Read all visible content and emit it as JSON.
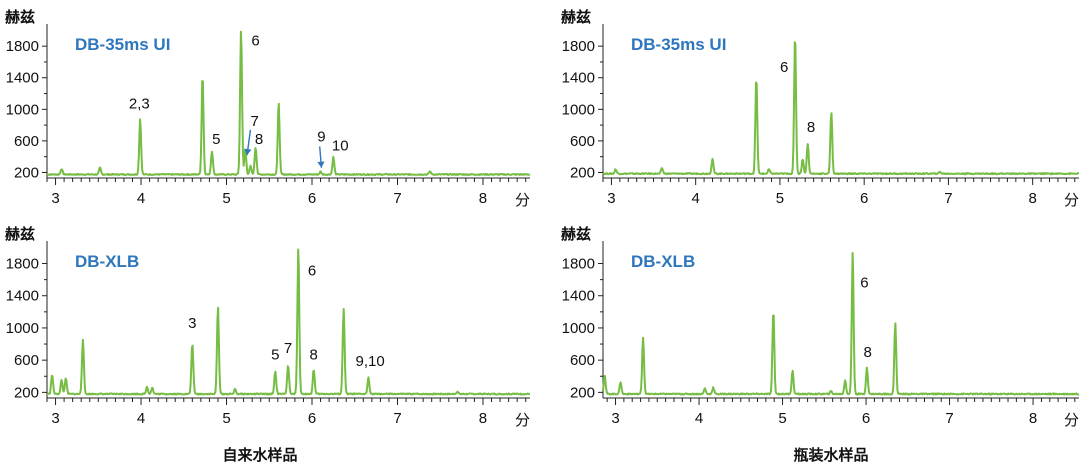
{
  "captions": {
    "left": "自来水样品",
    "right": "瓶装水样品"
  },
  "colors": {
    "trace": "#76bd43",
    "column_label": "#2e77bd",
    "axis": "#222222",
    "arrow": "#2e77bd"
  },
  "chart_data": [
    {
      "type": "line",
      "column": "DB-35ms UI",
      "ylabel": "赫兹",
      "xunit": "分",
      "xlim": [
        2.9,
        8.55
      ],
      "ylim": [
        130,
        2030
      ],
      "yticks": [
        "200",
        "600",
        "1000",
        "1400",
        "1800"
      ],
      "xticks": [
        "3",
        "4",
        "5",
        "6",
        "7",
        "8"
      ],
      "baseline": 175,
      "peaks": [
        {
          "x": 3.07,
          "h": 245
        },
        {
          "x": 3.52,
          "h": 260
        },
        {
          "x": 3.99,
          "h": 880
        },
        {
          "x": 4.72,
          "h": 1440
        },
        {
          "x": 4.83,
          "h": 470
        },
        {
          "x": 5.17,
          "h": 2010
        },
        {
          "x": 5.22,
          "h": 500
        },
        {
          "x": 5.28,
          "h": 280
        },
        {
          "x": 5.34,
          "h": 520
        },
        {
          "x": 5.61,
          "h": 1090
        },
        {
          "x": 6.1,
          "h": 210
        },
        {
          "x": 6.25,
          "h": 395
        },
        {
          "x": 7.38,
          "h": 215
        }
      ],
      "annotations": [
        {
          "text": "2,3",
          "x": 3.98,
          "y": 1010
        },
        {
          "text": "5",
          "x": 4.88,
          "y": 560
        },
        {
          "text": "6",
          "x": 5.34,
          "y": 1810
        },
        {
          "text": "7",
          "x": 5.33,
          "y": 790
        },
        {
          "text": "8",
          "x": 5.38,
          "y": 560
        },
        {
          "text": "9",
          "x": 6.11,
          "y": 590
        },
        {
          "text": "10",
          "x": 6.33,
          "y": 480
        }
      ]
    },
    {
      "type": "line",
      "column": "DB-35ms UI",
      "ylabel": "赫兹",
      "xunit": "分",
      "xlim": [
        2.9,
        8.55
      ],
      "ylim": [
        130,
        2030
      ],
      "yticks": [
        "200",
        "600",
        "1000",
        "1400",
        "1800"
      ],
      "xticks": [
        "3",
        "4",
        "5",
        "6",
        "7",
        "8"
      ],
      "baseline": 185,
      "peaks": [
        {
          "x": 3.05,
          "h": 240
        },
        {
          "x": 3.6,
          "h": 255
        },
        {
          "x": 4.2,
          "h": 370
        },
        {
          "x": 4.72,
          "h": 1410
        },
        {
          "x": 4.87,
          "h": 240
        },
        {
          "x": 5.18,
          "h": 1950
        },
        {
          "x": 5.27,
          "h": 370
        },
        {
          "x": 5.33,
          "h": 565
        },
        {
          "x": 5.61,
          "h": 970
        },
        {
          "x": 6.9,
          "h": 210
        }
      ],
      "annotations": [
        {
          "text": "6",
          "x": 5.05,
          "y": 1470
        },
        {
          "text": "8",
          "x": 5.37,
          "y": 710
        }
      ]
    },
    {
      "type": "line",
      "column": "DB-XLB",
      "ylabel": "赫兹",
      "xunit": "分",
      "xlim": [
        2.9,
        8.55
      ],
      "ylim": [
        130,
        2030
      ],
      "yticks": [
        "200",
        "600",
        "1000",
        "1400",
        "1800"
      ],
      "xticks": [
        "3",
        "4",
        "5",
        "6",
        "7",
        "8"
      ],
      "baseline": 180,
      "peaks": [
        {
          "x": 2.96,
          "h": 420
        },
        {
          "x": 3.07,
          "h": 350
        },
        {
          "x": 3.12,
          "h": 380
        },
        {
          "x": 3.32,
          "h": 860
        },
        {
          "x": 4.07,
          "h": 270
        },
        {
          "x": 4.13,
          "h": 260
        },
        {
          "x": 4.6,
          "h": 810
        },
        {
          "x": 4.9,
          "h": 1260
        },
        {
          "x": 5.1,
          "h": 240
        },
        {
          "x": 5.57,
          "h": 460
        },
        {
          "x": 5.72,
          "h": 540
        },
        {
          "x": 5.84,
          "h": 2010
        },
        {
          "x": 6.02,
          "h": 490
        },
        {
          "x": 6.37,
          "h": 1240
        },
        {
          "x": 6.66,
          "h": 390
        },
        {
          "x": 7.7,
          "h": 210
        }
      ],
      "annotations": [
        {
          "text": "3",
          "x": 4.6,
          "y": 1000
        },
        {
          "text": "5",
          "x": 5.57,
          "y": 610
        },
        {
          "text": "6",
          "x": 6.0,
          "y": 1650
        },
        {
          "text": "7",
          "x": 5.72,
          "y": 690
        },
        {
          "text": "8",
          "x": 6.02,
          "y": 610
        },
        {
          "text": "9,10",
          "x": 6.68,
          "y": 530
        }
      ]
    },
    {
      "type": "line",
      "column": "DB-XLB",
      "ylabel": "赫兹",
      "xunit": "分",
      "xlim": [
        2.85,
        8.55
      ],
      "ylim": [
        130,
        2030
      ],
      "yticks": [
        "200",
        "600",
        "1000",
        "1400",
        "1800"
      ],
      "xticks": [
        "3",
        "4",
        "5",
        "6",
        "7",
        "8"
      ],
      "baseline": 180,
      "peaks": [
        {
          "x": 2.87,
          "h": 420
        },
        {
          "x": 3.06,
          "h": 330
        },
        {
          "x": 3.33,
          "h": 880
        },
        {
          "x": 4.07,
          "h": 250
        },
        {
          "x": 4.17,
          "h": 260
        },
        {
          "x": 4.89,
          "h": 1220
        },
        {
          "x": 5.12,
          "h": 470
        },
        {
          "x": 5.58,
          "h": 215
        },
        {
          "x": 5.75,
          "h": 350
        },
        {
          "x": 5.84,
          "h": 1950
        },
        {
          "x": 6.01,
          "h": 510
        },
        {
          "x": 6.35,
          "h": 1060
        }
      ],
      "annotations": [
        {
          "text": "6",
          "x": 5.98,
          "y": 1500
        },
        {
          "text": "8",
          "x": 6.02,
          "y": 640
        }
      ]
    }
  ]
}
